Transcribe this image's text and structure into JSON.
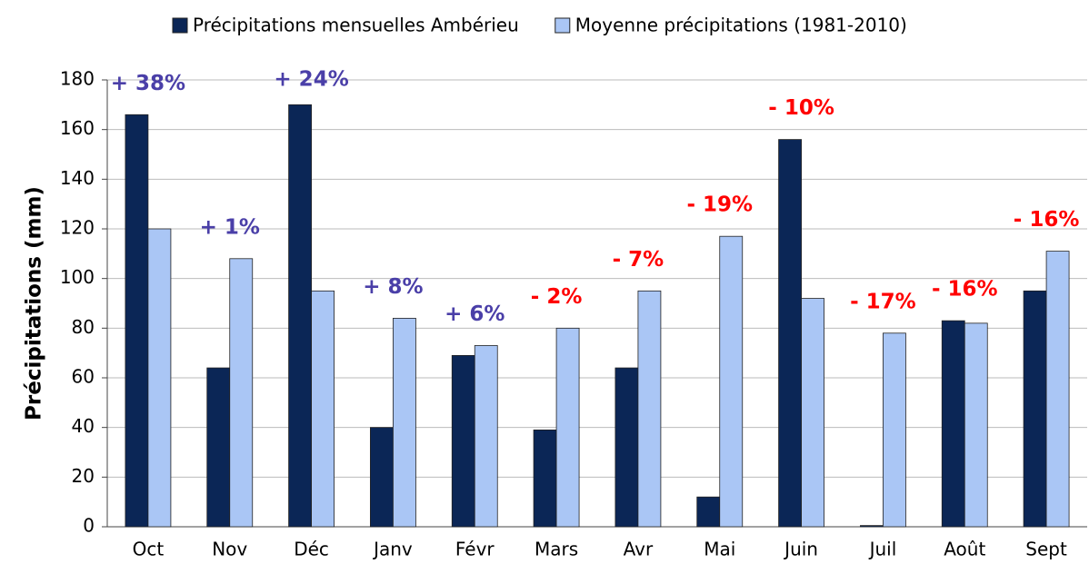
{
  "chart_data": {
    "type": "bar",
    "ylabel": "Précipitations (mm)",
    "categories": [
      "Oct",
      "Nov",
      "Déc",
      "Janv",
      "Févr",
      "Mars",
      "Avr",
      "Mai",
      "Juin",
      "Juil",
      "Août",
      "Sept"
    ],
    "series": [
      {
        "name": "Précipitations mensuelles Ambérieu",
        "color": "#0b2656",
        "values": [
          166,
          64,
          170,
          40,
          69,
          39,
          64,
          12,
          156,
          0.5,
          83,
          95
        ]
      },
      {
        "name": "Moyenne précipitations (1981-2010)",
        "color": "#aac6f5",
        "values": [
          120,
          108,
          95,
          84,
          73,
          80,
          95,
          117,
          92,
          78,
          82,
          111
        ]
      }
    ],
    "annotations": [
      {
        "text": "+ 38%",
        "color": "#4a3fa8"
      },
      {
        "text": "+ 1%",
        "color": "#4a3fa8"
      },
      {
        "text": "+ 24%",
        "color": "#4a3fa8"
      },
      {
        "text": "+ 8%",
        "color": "#4a3fa8"
      },
      {
        "text": "+ 6%",
        "color": "#4a3fa8"
      },
      {
        "text": "- 2%",
        "color": "#ff0000"
      },
      {
        "text": "- 7%",
        "color": "#ff0000"
      },
      {
        "text": "- 19%",
        "color": "#ff0000"
      },
      {
        "text": "- 10%",
        "color": "#ff0000"
      },
      {
        "text": "- 17%",
        "color": "#ff0000"
      },
      {
        "text": "- 16%",
        "color": "#ff0000"
      },
      {
        "text": "- 16%",
        "color": "#ff0000"
      }
    ],
    "ylim": [
      0,
      180
    ],
    "yticks": [
      0,
      20,
      40,
      60,
      80,
      100,
      120,
      140,
      160,
      180
    ],
    "grid": true,
    "legend": "top"
  }
}
